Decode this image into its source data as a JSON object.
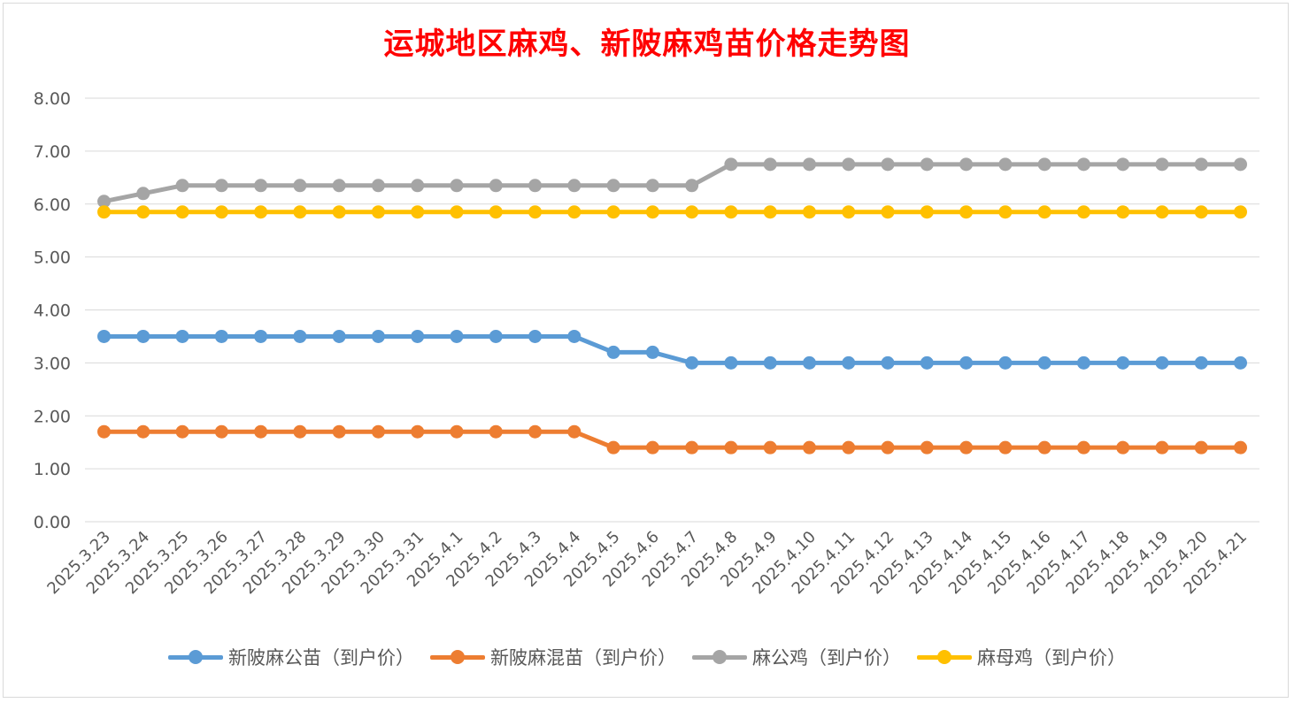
{
  "chart_data": {
    "type": "line",
    "title": "运城地区麻鸡、新陂麻鸡苗价格走势图",
    "xlabel": "",
    "ylabel": "",
    "ylim": [
      0,
      8
    ],
    "yticks": [
      "0.00",
      "1.00",
      "2.00",
      "3.00",
      "4.00",
      "5.00",
      "6.00",
      "7.00",
      "8.00"
    ],
    "grid": true,
    "legend_position": "bottom",
    "categories": [
      "2025.3.23",
      "2025.3.24",
      "2025.3.25",
      "2025.3.26",
      "2025.3.27",
      "2025.3.28",
      "2025.3.29",
      "2025.3.30",
      "2025.3.31",
      "2025.4.1",
      "2025.4.2",
      "2025.4.3",
      "2025.4.4",
      "2025.4.5",
      "2025.4.6",
      "2025.4.7",
      "2025.4.8",
      "2025.4.9",
      "2025.4.10",
      "2025.4.11",
      "2025.4.12",
      "2025.4.13",
      "2025.4.14",
      "2025.4.15",
      "2025.4.16",
      "2025.4.17",
      "2025.4.18",
      "2025.4.19",
      "2025.4.20",
      "2025.4.21"
    ],
    "series": [
      {
        "name": "新陂麻公苗（到户价）",
        "color": "#5b9bd5",
        "values": [
          3.5,
          3.5,
          3.5,
          3.5,
          3.5,
          3.5,
          3.5,
          3.5,
          3.5,
          3.5,
          3.5,
          3.5,
          3.5,
          3.2,
          3.2,
          3.0,
          3.0,
          3.0,
          3.0,
          3.0,
          3.0,
          3.0,
          3.0,
          3.0,
          3.0,
          3.0,
          3.0,
          3.0,
          3.0,
          3.0
        ]
      },
      {
        "name": "新陂麻混苗（到户价）",
        "color": "#ed7d31",
        "values": [
          1.7,
          1.7,
          1.7,
          1.7,
          1.7,
          1.7,
          1.7,
          1.7,
          1.7,
          1.7,
          1.7,
          1.7,
          1.7,
          1.4,
          1.4,
          1.4,
          1.4,
          1.4,
          1.4,
          1.4,
          1.4,
          1.4,
          1.4,
          1.4,
          1.4,
          1.4,
          1.4,
          1.4,
          1.4,
          1.4
        ]
      },
      {
        "name": "麻公鸡（到户价）",
        "color": "#a5a5a5",
        "values": [
          6.05,
          6.2,
          6.35,
          6.35,
          6.35,
          6.35,
          6.35,
          6.35,
          6.35,
          6.35,
          6.35,
          6.35,
          6.35,
          6.35,
          6.35,
          6.35,
          6.75,
          6.75,
          6.75,
          6.75,
          6.75,
          6.75,
          6.75,
          6.75,
          6.75,
          6.75,
          6.75,
          6.75,
          6.75,
          6.75
        ]
      },
      {
        "name": "麻母鸡（到户价）",
        "color": "#ffc000",
        "values": [
          5.85,
          5.85,
          5.85,
          5.85,
          5.85,
          5.85,
          5.85,
          5.85,
          5.85,
          5.85,
          5.85,
          5.85,
          5.85,
          5.85,
          5.85,
          5.85,
          5.85,
          5.85,
          5.85,
          5.85,
          5.85,
          5.85,
          5.85,
          5.85,
          5.85,
          5.85,
          5.85,
          5.85,
          5.85,
          5.85
        ]
      }
    ]
  }
}
